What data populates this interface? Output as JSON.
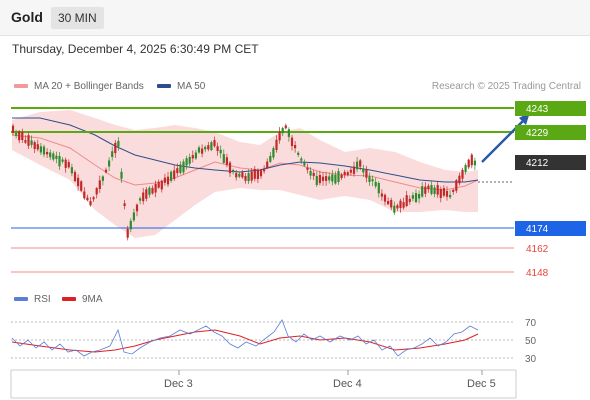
{
  "header": {
    "symbol": "Gold",
    "timeframe": "30 MIN"
  },
  "datetime": "Thursday, December 4, 2025 6:30:49 PM CET",
  "legend": {
    "bollinger": {
      "label": "MA 20 + Bollinger Bands",
      "color": "#f08a8a"
    },
    "ma50": {
      "label": "MA 50",
      "color": "#2e4d8c"
    }
  },
  "credit": "Research © 2025 Trading Central",
  "levels": [
    {
      "value": "4243",
      "kind": "resistance",
      "color": "#5aa814"
    },
    {
      "value": "4229",
      "kind": "resistance",
      "color": "#5aa814"
    },
    {
      "value": "4212",
      "kind": "last",
      "color": "#333333"
    },
    {
      "value": "4174",
      "kind": "pivot",
      "color": "#1e64e6"
    },
    {
      "value": "4162",
      "kind": "support",
      "color": "#e8453c"
    },
    {
      "value": "4148",
      "kind": "support",
      "color": "#e8453c"
    }
  ],
  "rsi_legend": {
    "rsi": {
      "label": "RSI",
      "color": "#5b7fd6"
    },
    "ma": {
      "label": "9MA",
      "color": "#e02020"
    }
  },
  "rsi_ticks": [
    "70",
    "50",
    "30"
  ],
  "x_ticks": [
    "Dec 3",
    "Dec 4",
    "Dec 5"
  ],
  "colors": {
    "up": "#2e8b2e",
    "down": "#c0282a",
    "band_fill": "#fbdcdc"
  }
}
